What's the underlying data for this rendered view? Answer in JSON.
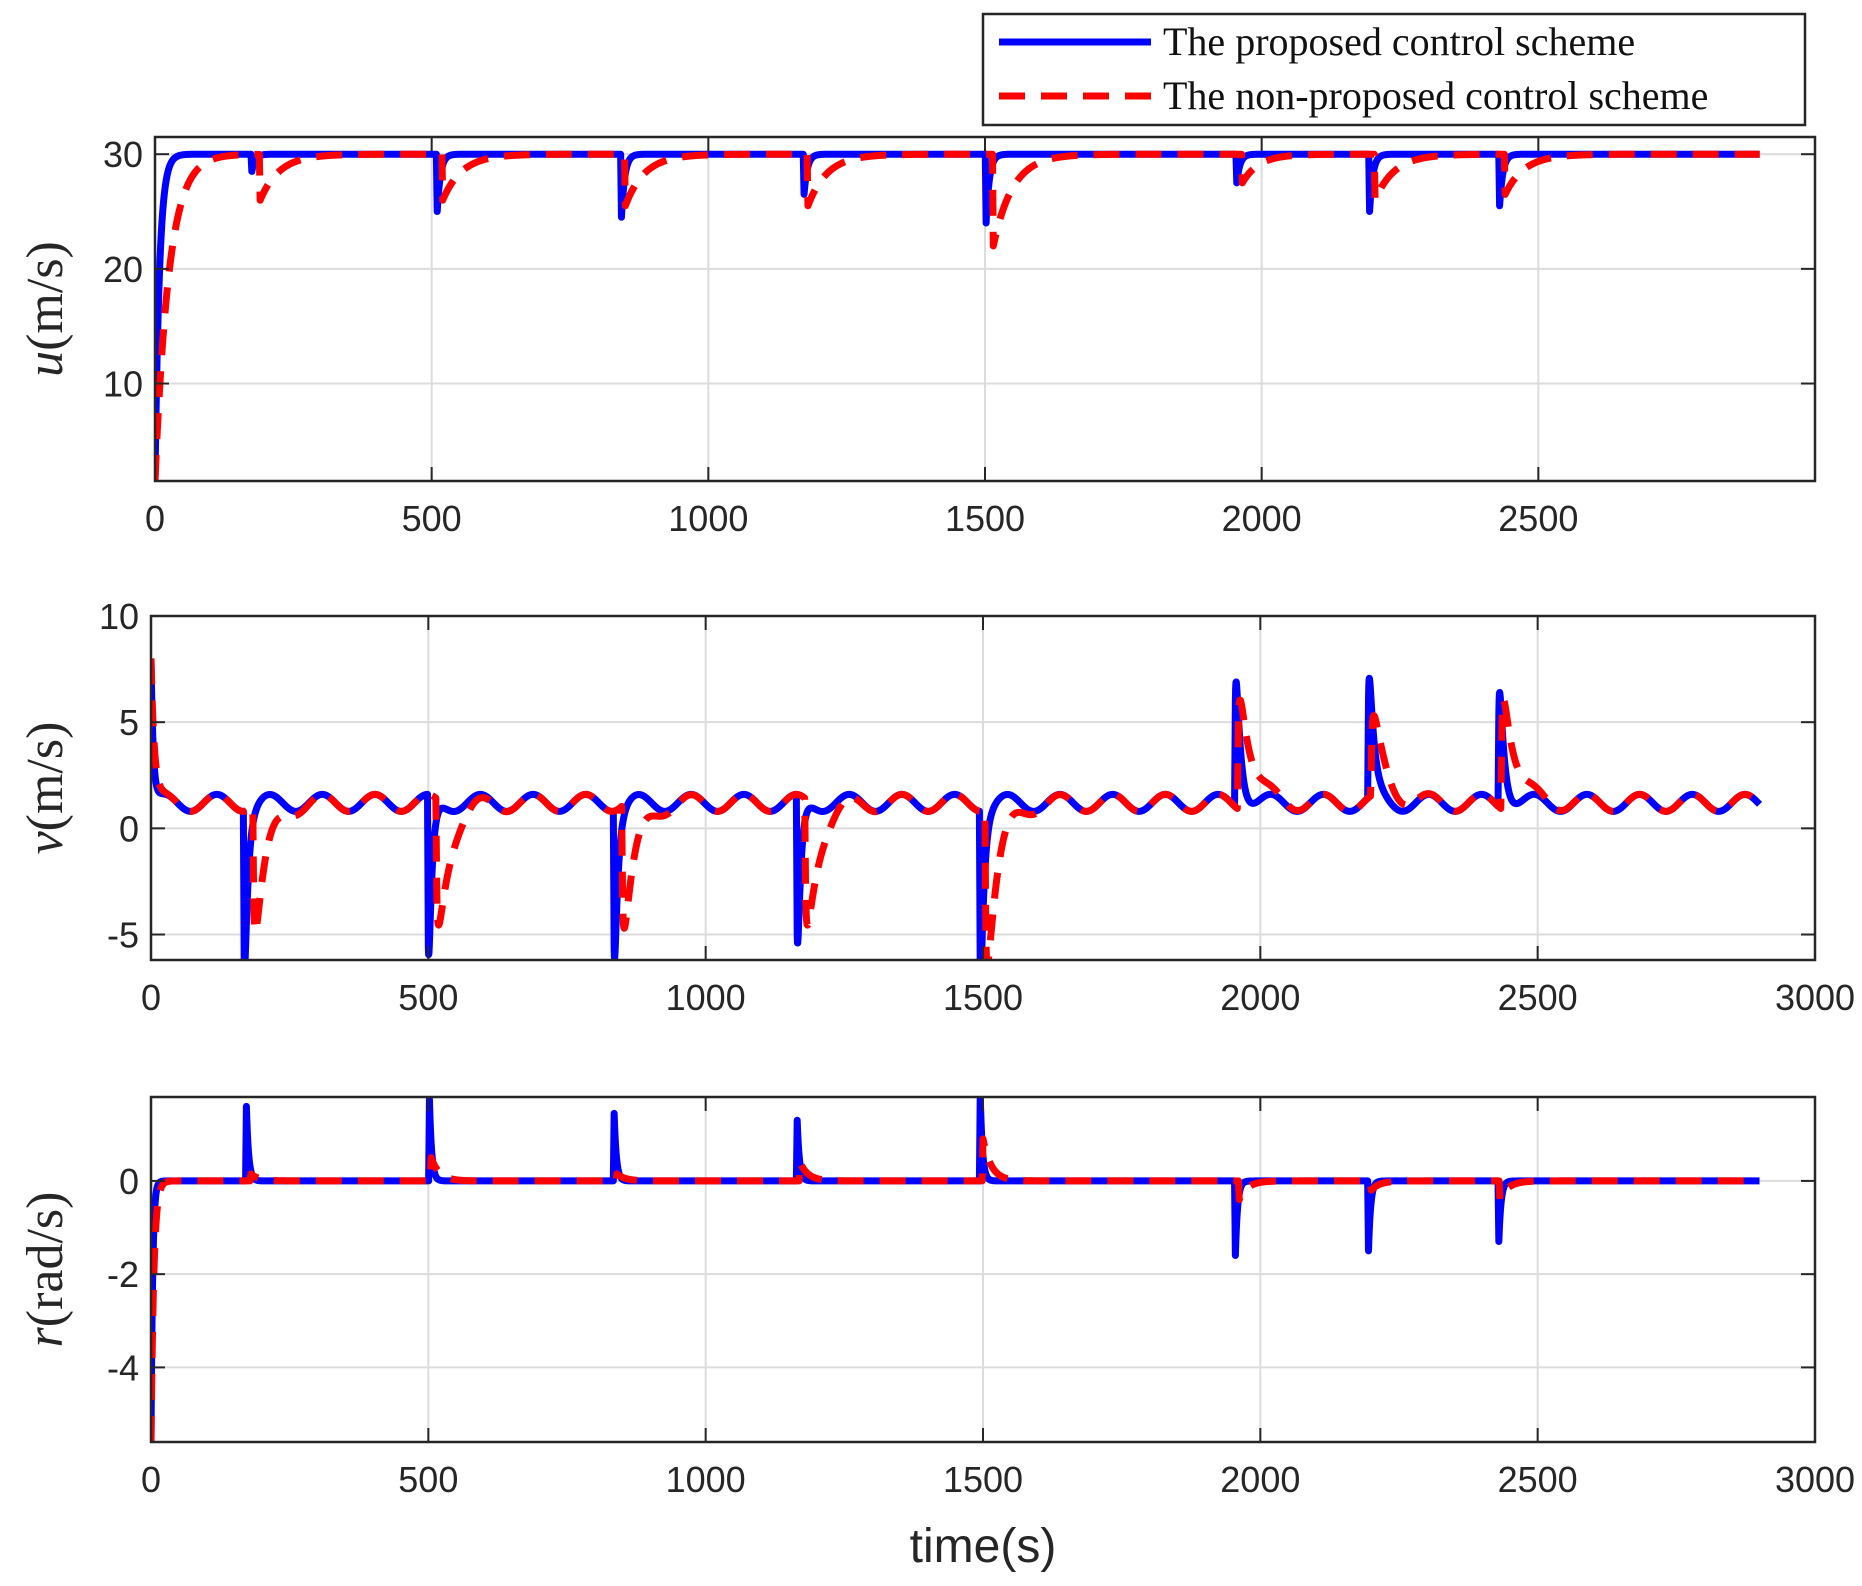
{
  "legend": {
    "entries": [
      {
        "label": "The proposed control scheme",
        "color": "#0000ff",
        "style": "solid"
      },
      {
        "label": "The non-proposed control scheme",
        "color": "#ff0000",
        "style": "dashed"
      }
    ],
    "placement": "top-right"
  },
  "chart_data": [
    {
      "type": "line",
      "ylabel_symbol": "u",
      "ylabel_unit": "(m/s)",
      "xlabel": "",
      "xlim": [
        0,
        3000
      ],
      "ylim": [
        1.5,
        31.5
      ],
      "xticks": [
        0,
        500,
        1000,
        1500,
        2000,
        2500
      ],
      "yticks": [
        10,
        20,
        30
      ],
      "grid": true,
      "baseline": 30,
      "x_end": 2900,
      "start_value": 1.5,
      "series": [
        {
          "name": "The proposed control scheme",
          "color": "#0000ff",
          "style": "solid",
          "rise_time": 8,
          "events": [
            [
              175,
              -1.5,
              0,
              6
            ],
            [
              510,
              -5,
              0,
              6
            ],
            [
              843,
              -5.5,
              0,
              6
            ],
            [
              1173,
              -3.5,
              0,
              6
            ],
            [
              1502,
              -6,
              0,
              6
            ],
            [
              1955,
              -2.5,
              0,
              6
            ],
            [
              2195,
              -5,
              0,
              6
            ],
            [
              2430,
              -4.5,
              0,
              6
            ]
          ]
        },
        {
          "name": "The non-proposed control scheme",
          "color": "#ff0000",
          "style": "dashed",
          "rise_time": 25,
          "events": [
            [
              190,
              -4,
              0,
              35
            ],
            [
              520,
              -4,
              0,
              35
            ],
            [
              850,
              -4.5,
              0,
              35
            ],
            [
              1180,
              -4.5,
              0,
              35
            ],
            [
              1515,
              -8,
              0,
              35
            ],
            [
              1965,
              -2.5,
              0,
              30
            ],
            [
              2205,
              -4,
              0,
              35
            ],
            [
              2440,
              -3.5,
              0,
              35
            ]
          ]
        }
      ]
    },
    {
      "type": "line",
      "ylabel_symbol": "v",
      "ylabel_unit": "(m/s)",
      "xlabel": "",
      "xlim": [
        0,
        3000
      ],
      "ylim": [
        -6.2,
        10
      ],
      "xticks": [
        0,
        500,
        1000,
        1500,
        2000,
        2500,
        3000
      ],
      "yticks": [
        -5,
        0,
        5,
        10
      ],
      "grid": true,
      "baseline": 1.2,
      "oscillation": 0.4,
      "x_end": 2900,
      "start_value": 8,
      "series": [
        {
          "name": "The proposed control scheme",
          "color": "#0000ff",
          "style": "solid",
          "rise_time": 4,
          "events": [
            [
              168,
              -7,
              -5,
              6
            ],
            [
              500,
              -7.2,
              -5,
              6
            ],
            [
              835,
              -6.5,
              -5,
              6
            ],
            [
              1165,
              -6.6,
              -5,
              6
            ],
            [
              1495,
              -7.5,
              -5,
              6
            ],
            [
              1955,
              5,
              5,
              8
            ],
            [
              2195,
              4.6,
              5,
              8
            ],
            [
              2430,
              4.4,
              5,
              8
            ]
          ]
        },
        {
          "name": "The non-proposed control scheme",
          "color": "#ff0000",
          "style": "dashed",
          "rise_time": 6,
          "events": [
            [
              185,
              -4,
              -5,
              20
            ],
            [
              515,
              -3.8,
              -5,
              20
            ],
            [
              850,
              -3.8,
              -5,
              20
            ],
            [
              1180,
              -3.8,
              -5,
              20
            ],
            [
              1505,
              -5.5,
              -5,
              20
            ],
            [
              1960,
              3,
              5,
              20
            ],
            [
              2200,
              1.2,
              5,
              20
            ],
            [
              2435,
              3,
              5,
              20
            ]
          ]
        }
      ]
    },
    {
      "type": "line",
      "ylabel_symbol": "r",
      "ylabel_unit": "(rad/s)",
      "xlabel": "time(s)",
      "xlim": [
        0,
        3000
      ],
      "ylim": [
        -5.6,
        1.8
      ],
      "xticks": [
        0,
        500,
        1000,
        1500,
        2000,
        2500,
        3000
      ],
      "yticks": [
        -4,
        -2,
        0
      ],
      "grid": true,
      "baseline": 0,
      "x_end": 2900,
      "start_value": -5.6,
      "series": [
        {
          "name": "The proposed control scheme",
          "color": "#0000ff",
          "style": "solid",
          "rise_time": 3,
          "events": [
            [
              172,
              1.6,
              0,
              4
            ],
            [
              502,
              1.75,
              0,
              4
            ],
            [
              835,
              1.45,
              0,
              4
            ],
            [
              1165,
              1.3,
              0,
              4
            ],
            [
              1495,
              1.85,
              0,
              4
            ],
            [
              1955,
              -1.6,
              0,
              4
            ],
            [
              2195,
              -1.5,
              0,
              4
            ],
            [
              2430,
              -1.3,
              0,
              4
            ]
          ]
        },
        {
          "name": "The non-proposed control scheme",
          "color": "#ff0000",
          "style": "dashed",
          "rise_time": 5,
          "events": [
            [
              180,
              0.15,
              0,
              15
            ],
            [
              505,
              0.5,
              0,
              15
            ],
            [
              840,
              0.15,
              0,
              15
            ],
            [
              1170,
              0.4,
              0,
              15
            ],
            [
              1500,
              0.9,
              0,
              15
            ],
            [
              1962,
              -0.4,
              0,
              15
            ],
            [
              2200,
              -0.2,
              0,
              15
            ],
            [
              2432,
              -0.4,
              0,
              15
            ]
          ]
        }
      ]
    }
  ]
}
